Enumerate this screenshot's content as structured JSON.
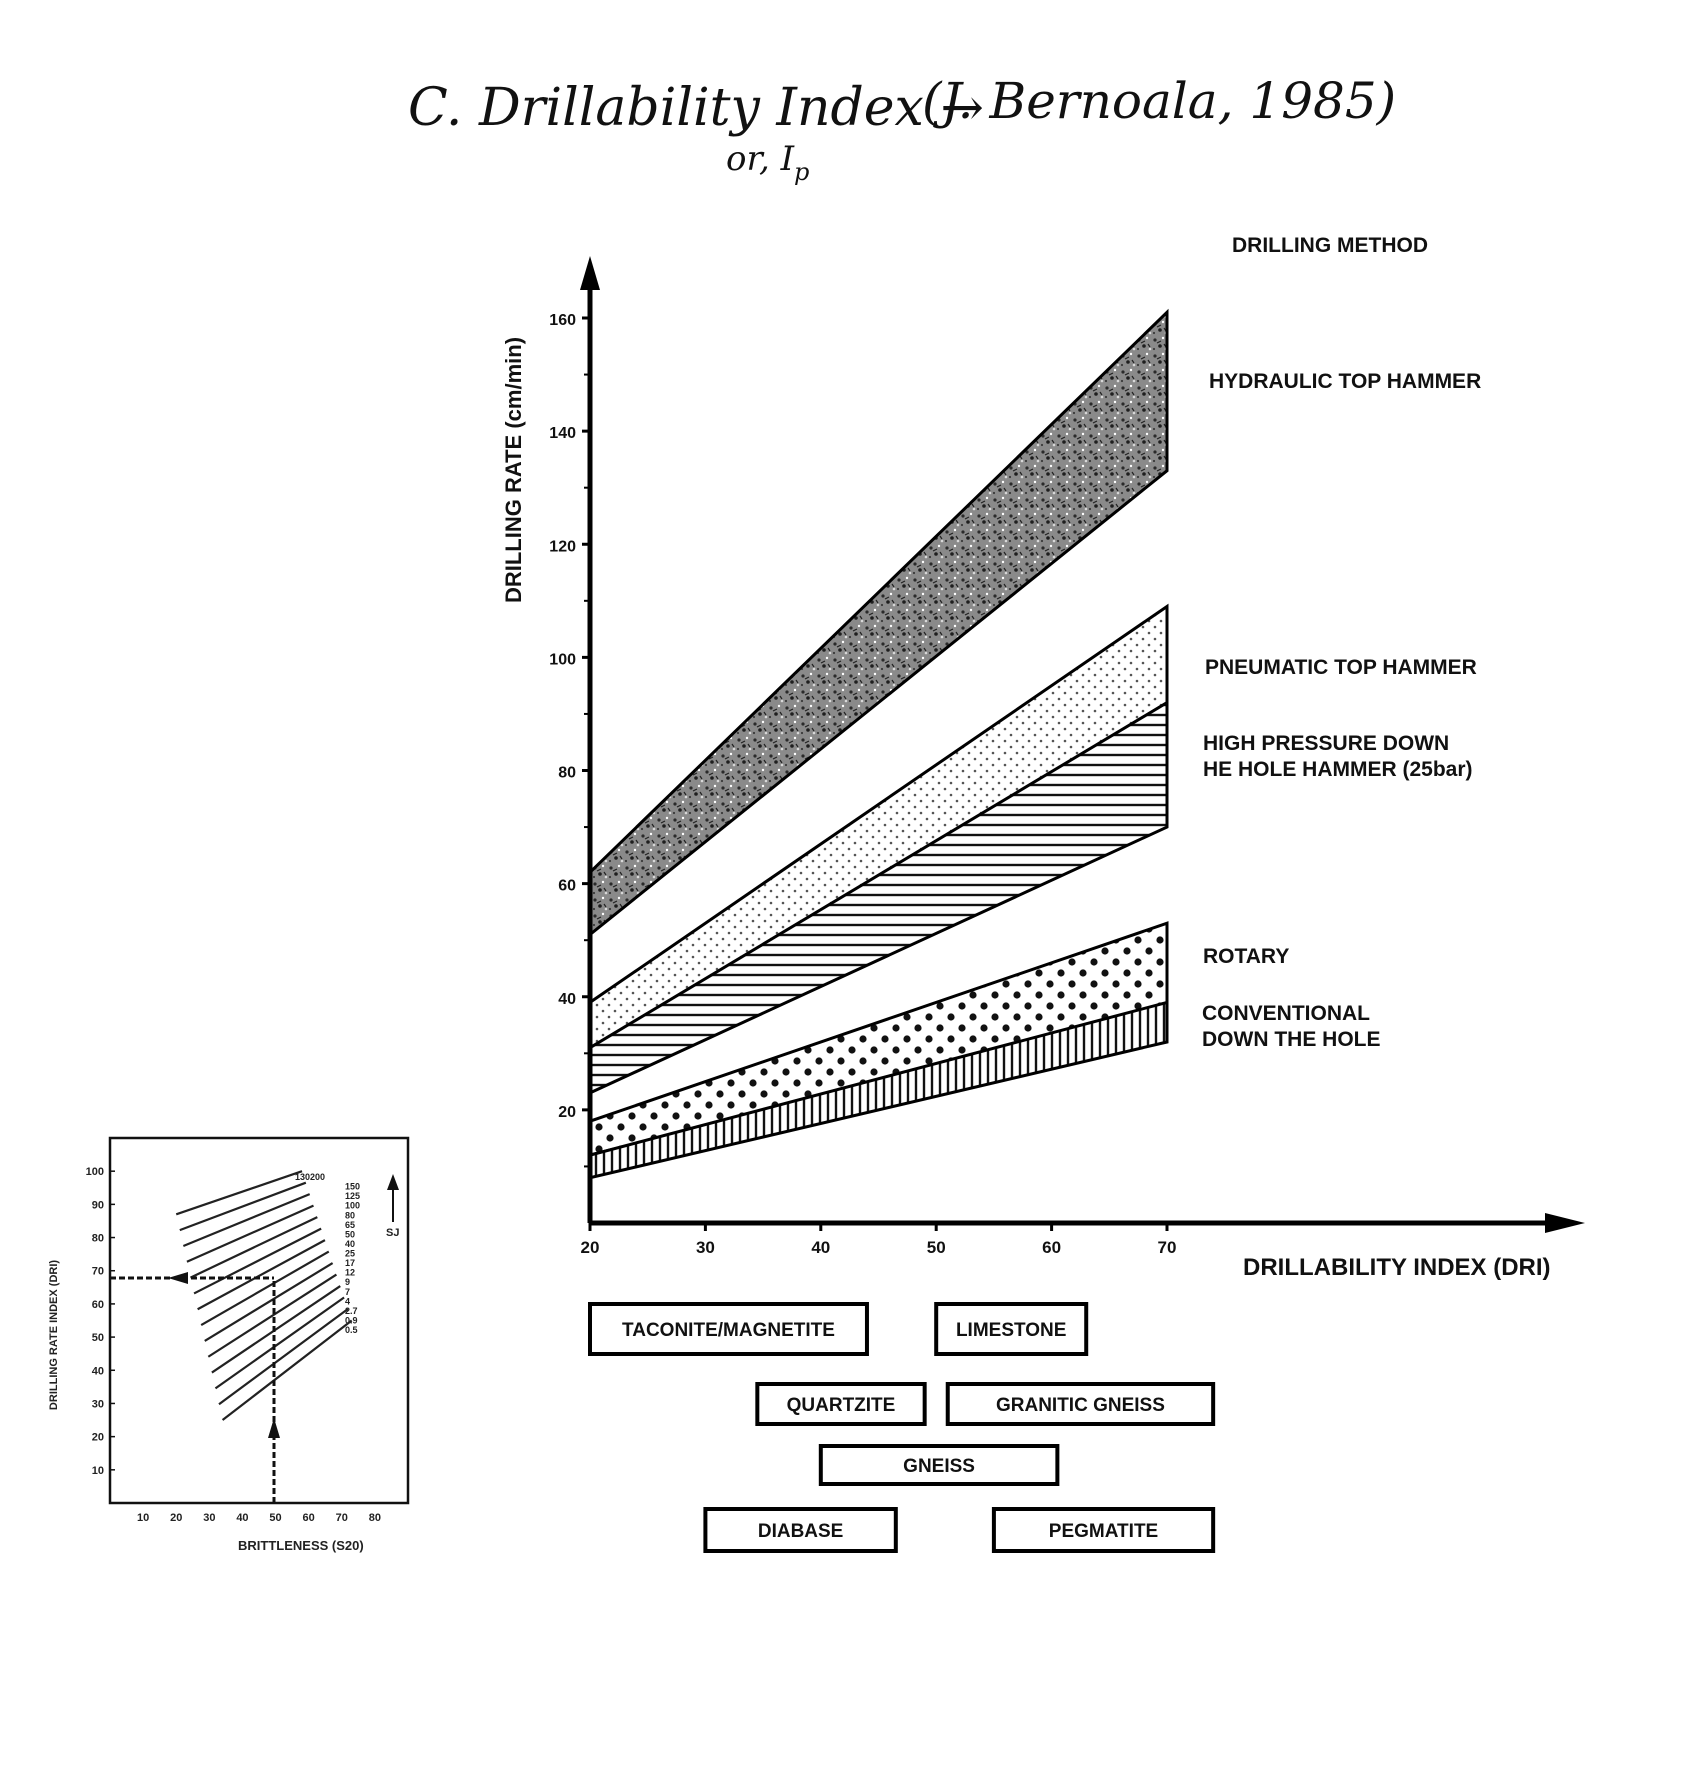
{
  "heading": {
    "line1": "C. Drillability Index →",
    "line1_sub": "or, I",
    "line1_sub_sub": "p",
    "citation": "(J. Bernoala, 1985)"
  },
  "chart_data": [
    {
      "type": "area",
      "title": "",
      "xlabel": "DRILLABILITY INDEX (DRI)",
      "ylabel": "DRILLING RATE (cm/min)",
      "legend_title": "DRILLING METHOD",
      "xlim": [
        20,
        70
      ],
      "ylim": [
        0,
        160
      ],
      "x_ticks": [
        20,
        30,
        40,
        50,
        60,
        70
      ],
      "y_ticks": [
        20,
        40,
        60,
        80,
        100,
        120,
        140,
        160
      ],
      "grid": false,
      "legend_placement": "right",
      "series": [
        {
          "name": "HYDRAULIC TOP HAMMER",
          "pattern": "speckle",
          "x": [
            20,
            70
          ],
          "lower": [
            51,
            133
          ],
          "upper": [
            62,
            161
          ]
        },
        {
          "name": "PNEUMATIC TOP HAMMER",
          "pattern": "dots-fine",
          "x": [
            20,
            70
          ],
          "lower": [
            30,
            92
          ],
          "upper": [
            39,
            109
          ]
        },
        {
          "name": "HIGH PRESSURE DOWN THE HOLE HAMMER (25bar)",
          "pattern": "horizontal-hatch",
          "x": [
            20,
            70
          ],
          "lower": [
            23,
            70
          ],
          "upper": [
            31,
            92
          ]
        },
        {
          "name": "ROTARY",
          "pattern": "dots-coarse",
          "x": [
            20,
            70
          ],
          "lower": [
            12,
            38
          ],
          "upper": [
            18,
            53
          ]
        },
        {
          "name": "CONVENTIONAL DOWN THE HOLE",
          "pattern": "vertical-hatch",
          "x": [
            20,
            70
          ],
          "lower": [
            8,
            32
          ],
          "upper": [
            12,
            39
          ]
        }
      ],
      "rock_types": [
        {
          "name": "TACONITE/MAGNETITE",
          "dri_range": [
            20,
            44
          ],
          "row": 0
        },
        {
          "name": "LIMESTONE",
          "dri_range": [
            50,
            63
          ],
          "row": 0
        },
        {
          "name": "QUARTZITE",
          "dri_range": [
            34.5,
            49
          ],
          "row": 1
        },
        {
          "name": "GRANITIC GNEISS",
          "dri_range": [
            51,
            74
          ],
          "row": 1
        },
        {
          "name": "GNEISS",
          "dri_range": [
            40,
            60.5
          ],
          "row": 2
        },
        {
          "name": "DIABASE",
          "dri_range": [
            30,
            46.5
          ],
          "row": 3
        },
        {
          "name": "PEGMATITE",
          "dri_range": [
            55,
            74
          ],
          "row": 3
        }
      ]
    },
    {
      "type": "line",
      "title": "",
      "xlabel": "BRITTLENESS (S20)",
      "ylabel": "DRILLING RATE INDEX (DRI)",
      "xlim": [
        0,
        90
      ],
      "ylim": [
        0,
        110
      ],
      "x_ticks": [
        10,
        20,
        30,
        40,
        50,
        60,
        70,
        80
      ],
      "y_ticks": [
        10,
        20,
        30,
        40,
        50,
        60,
        70,
        80,
        90,
        100
      ],
      "sj_label": "SJ",
      "sj_values": [
        "130200",
        "150",
        "125",
        "100",
        "80",
        "65",
        "50",
        "40",
        "25",
        "17",
        "12",
        "9",
        "7",
        "4",
        "2.7",
        "0.9",
        "0.5"
      ],
      "example": {
        "brittleness": 50,
        "dri": 70
      }
    }
  ]
}
